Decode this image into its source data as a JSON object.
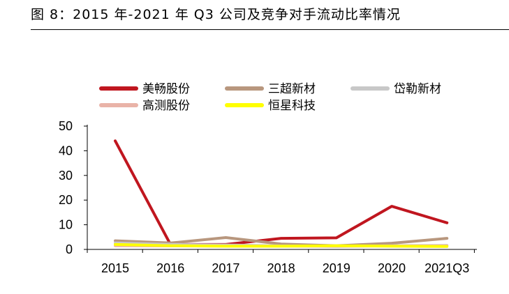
{
  "figure": {
    "title": "图 8：2015 年-2021 年 Q3 公司及竞争对手流动比率情况"
  },
  "chart_data": {
    "type": "line",
    "categories": [
      "2015",
      "2016",
      "2017",
      "2018",
      "2019",
      "2020",
      "2021Q3"
    ],
    "ylim": [
      0,
      50
    ],
    "yticks": [
      "0",
      "10",
      "20",
      "30",
      "40",
      "50"
    ],
    "grid": false,
    "legend_position": "top",
    "series": [
      {
        "name": "美畅股份",
        "color": "#c0161f",
        "values": [
          44.0,
          2.0,
          2.0,
          4.5,
          4.7,
          17.5,
          10.8
        ]
      },
      {
        "name": "三超新材",
        "color": "#b8977e",
        "values": [
          3.5,
          2.6,
          4.8,
          2.2,
          1.5,
          2.5,
          4.5
        ]
      },
      {
        "name": "岱勒新材",
        "color": "#c8c8c8",
        "values": [
          2.6,
          2.0,
          1.8,
          1.4,
          1.2,
          1.5,
          1.6
        ]
      },
      {
        "name": "高测股份",
        "color": "#e9b3a8",
        "values": [
          1.5,
          1.4,
          1.3,
          1.3,
          1.3,
          1.4,
          1.5
        ]
      },
      {
        "name": "恒星科技",
        "color": "#ffff00",
        "values": [
          2.0,
          1.5,
          1.3,
          1.3,
          1.5,
          1.3,
          1.2
        ]
      }
    ]
  }
}
